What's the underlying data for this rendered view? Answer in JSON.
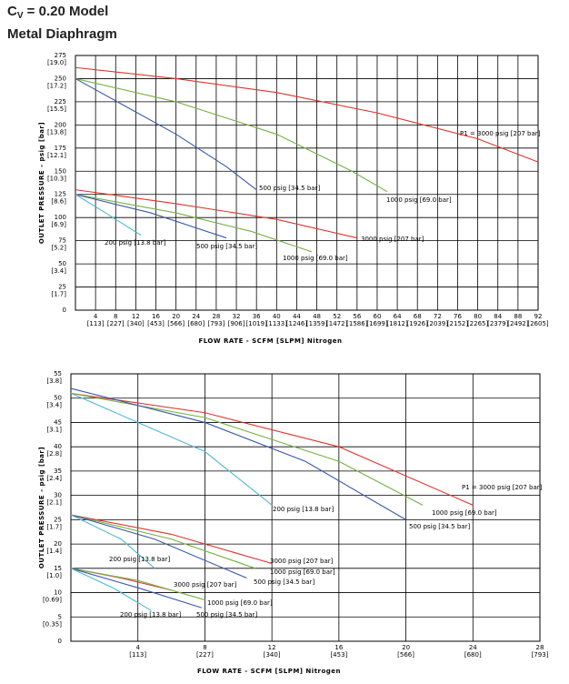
{
  "header": {
    "title_symbol": "C",
    "title_subscript": "V",
    "title_rest": " = 0.20 Model",
    "subtitle": "Metal Diaphragm"
  },
  "chart_data": [
    {
      "type": "line",
      "xlabel": "FLOW RATE - SCFM [SLPM] Nitrogen",
      "ylabel": "OUTLET PRESSURE - psig [bar]",
      "xlim": [
        0,
        92
      ],
      "ylim": [
        0,
        275
      ],
      "xticks": [
        4,
        8,
        12,
        16,
        20,
        24,
        28,
        32,
        36,
        40,
        44,
        48,
        52,
        56,
        60,
        64,
        68,
        72,
        76,
        80,
        84,
        88,
        92
      ],
      "x_tick_sublabels": [
        "[113]",
        "[227]",
        "[340]",
        "[453]",
        "[566]",
        "[680]",
        "[793]",
        "[906]",
        "[1019]",
        "[1133]",
        "[1246]",
        "[1359]",
        "[1472]",
        "[1586]",
        "[1699]",
        "[1812]",
        "[1926]",
        "[2039]",
        "[2152]",
        "[2265]",
        "[2379]",
        "[2492]",
        "[2605]"
      ],
      "yticks": [
        0,
        25,
        50,
        75,
        100,
        125,
        150,
        175,
        200,
        225,
        250,
        275
      ],
      "y_tick_sublabels": [
        null,
        "[1.7]",
        "[3.4]",
        "[5.2]",
        "[6.9]",
        "[8.6]",
        "[10.3]",
        "[12.1]",
        "[13.8]",
        "[15.5]",
        "[17.2]",
        "[19.0]"
      ],
      "grid": true,
      "series": [
        {
          "name": "P1 = 3000 psig [207 bar]",
          "color": "#e0342c",
          "x": [
            0,
            20,
            40,
            60,
            80,
            92
          ],
          "values": [
            262,
            250,
            235,
            213,
            185,
            160
          ]
        },
        {
          "name": "1000 psig [69.0 bar]",
          "color": "#76b043",
          "x": [
            0,
            20,
            40,
            55,
            62
          ],
          "values": [
            250,
            225,
            190,
            150,
            128
          ]
        },
        {
          "name": "500 psig [34.5 bar]",
          "color": "#3a58a8",
          "x": [
            0,
            10,
            20,
            30,
            36
          ],
          "values": [
            250,
            220,
            190,
            155,
            130
          ]
        },
        {
          "name": "3000 psig [207 bar]",
          "color": "#e0342c",
          "x": [
            0,
            20,
            40,
            56
          ],
          "values": [
            130,
            115,
            98,
            78
          ]
        },
        {
          "name": "1000 psig [69.0 bar]",
          "color": "#76b043",
          "x": [
            0,
            20,
            35,
            47
          ],
          "values": [
            125,
            105,
            85,
            63
          ]
        },
        {
          "name": "500 psig [34.5 bar]",
          "color": "#3a58a8",
          "x": [
            0,
            15,
            30
          ],
          "values": [
            125,
            105,
            78
          ]
        },
        {
          "name": "200 psig [13.8 bar]",
          "color": "#4fb8d8",
          "x": [
            0,
            6,
            13
          ],
          "values": [
            125,
            105,
            81
          ]
        }
      ]
    },
    {
      "type": "line",
      "xlabel": "FLOW RATE - SCFM [SLPM] Nitrogen",
      "ylabel": "OUTLET PRESSURE - psig [bar]",
      "xlim": [
        0,
        28
      ],
      "ylim": [
        0,
        55
      ],
      "xticks": [
        4,
        8,
        12,
        16,
        20,
        24,
        28
      ],
      "x_tick_sublabels": [
        "[113]",
        "[227]",
        "[340]",
        "[453]",
        "[566]",
        "[680]",
        "[793]"
      ],
      "yticks": [
        0,
        5,
        10,
        15,
        20,
        25,
        30,
        35,
        40,
        45,
        50,
        55
      ],
      "y_tick_sublabels": [
        null,
        "[0.35]",
        "[0.69]",
        "[1.0]",
        "[1.4]",
        "[1.7]",
        "[2.1]",
        "[2.4]",
        "[2.8]",
        "[3.1]",
        "[3.4]",
        "[3.8]"
      ],
      "grid": true,
      "series": [
        {
          "name": "P1 = 3000 psig [207 bar]",
          "color": "#e0342c",
          "x": [
            0,
            8,
            16,
            24
          ],
          "values": [
            51,
            47,
            40,
            28
          ]
        },
        {
          "name": "1000 psig [69.0 bar]",
          "color": "#76b043",
          "x": [
            0,
            8,
            16,
            21
          ],
          "values": [
            51,
            46,
            37,
            28
          ]
        },
        {
          "name": "500 psig [34.5 bar]",
          "color": "#3a58a8",
          "x": [
            0,
            8,
            14,
            20
          ],
          "values": [
            52,
            45,
            37,
            25
          ]
        },
        {
          "name": "200 psig [13.8 bar]",
          "color": "#4fb8d8",
          "x": [
            0,
            4,
            8,
            12
          ],
          "values": [
            51,
            45,
            39,
            28
          ]
        },
        {
          "name": "3000 psig [207 bar]",
          "color": "#e0342c",
          "x": [
            0,
            6,
            12
          ],
          "values": [
            26,
            22,
            16
          ]
        },
        {
          "name": "1000 psig [69.0 bar]",
          "color": "#76b043",
          "x": [
            0,
            6,
            11
          ],
          "values": [
            26,
            21,
            15
          ]
        },
        {
          "name": "500 psig [34.5 bar]",
          "color": "#3a58a8",
          "x": [
            0,
            5,
            10.5
          ],
          "values": [
            26,
            21,
            13
          ]
        },
        {
          "name": "200 psig [13.8 bar]",
          "color": "#4fb8d8",
          "x": [
            0,
            3,
            5
          ],
          "values": [
            26,
            21,
            15
          ]
        },
        {
          "name": "3000 psig [207 bar]",
          "color": "#e0342c",
          "x": [
            0,
            3,
            6
          ],
          "values": [
            15,
            13,
            10.5
          ]
        },
        {
          "name": "1000 psig [69.0 bar]",
          "color": "#76b043",
          "x": [
            0,
            4,
            8
          ],
          "values": [
            15,
            12.5,
            8.5
          ]
        },
        {
          "name": "500 psig [34.5 bar]",
          "color": "#3a58a8",
          "x": [
            0,
            4,
            7.8
          ],
          "values": [
            15,
            11,
            6.9
          ]
        },
        {
          "name": "200 psig [13.8 bar]",
          "color": "#4fb8d8",
          "x": [
            0,
            2.5,
            4.8
          ],
          "values": [
            15,
            11,
            6.3
          ]
        }
      ]
    }
  ]
}
